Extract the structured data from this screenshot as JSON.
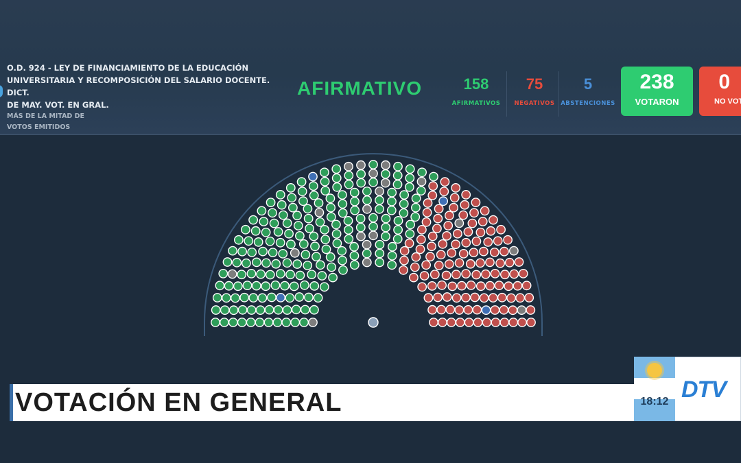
{
  "motion": {
    "title_line1": "O.D. 924 - LEY DE FINANCIAMIENTO DE LA EDUCACIÓN",
    "title_line2": "UNIVERSITARIA Y RECOMPOSICIÓN DEL SALARIO DOCENTE. DICT.",
    "title_line3": "DE MAY. VOT. EN GRAL.",
    "majority_line1": "MÁS DE LA MITAD DE",
    "majority_line2": "VOTOS EMITIDOS"
  },
  "result": "AFIRMATIVO",
  "counts": [
    {
      "value": "158",
      "label": "AFIRMATIVOS",
      "color": "#2ecc71"
    },
    {
      "value": "75",
      "label": "NEGATIVOS",
      "color": "#e74c3c"
    },
    {
      "value": "5",
      "label": "ABSTENCIONES",
      "color": "#4a90d9"
    }
  ],
  "totals": [
    {
      "value": "238",
      "label": "VOTARON",
      "color": "#2ecc71"
    },
    {
      "value": "0",
      "label": "NO VOTARON",
      "color": "#e74c3c"
    }
  ],
  "seat_colors": {
    "afirmativo": "#2f9e5a",
    "negativo": "#c0504d",
    "abstencion": "#3f6fb5",
    "ausente": "#7d7d7d",
    "president": "#8aa0b8"
  },
  "banner": "VOTACIÓN EN GENERAL",
  "clock": "18:12",
  "channel_logo": "DTV"
}
